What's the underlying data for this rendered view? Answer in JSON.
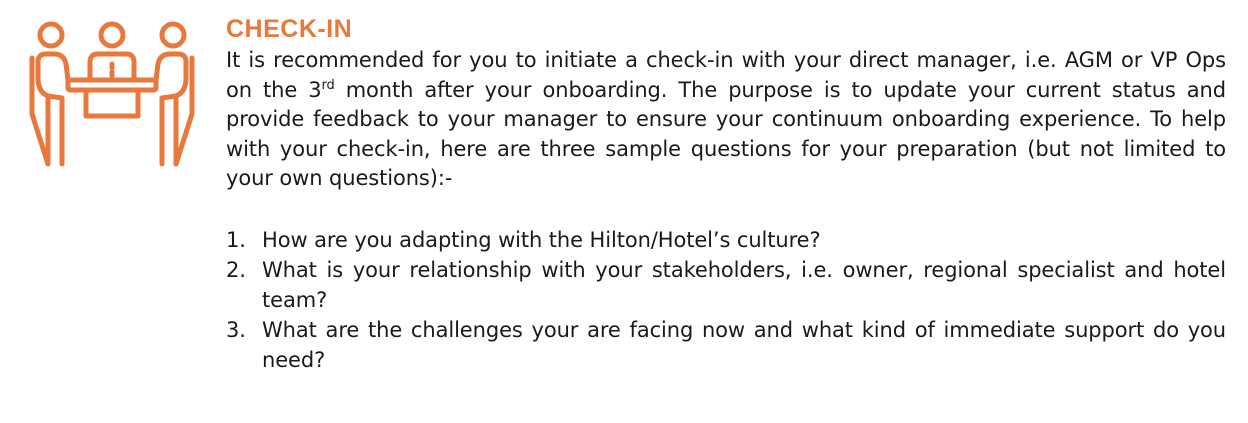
{
  "colors": {
    "accent": "#e8783c",
    "text": "#1a1a1a"
  },
  "icon": "meeting-people-icon",
  "heading": "CHECK-IN",
  "intro": {
    "before_sup": "It is recommended for you to initiate a check-in with your direct manager, i.e. AGM or VP Ops on the 3",
    "sup": "rd",
    "after_sup": " month after your onboarding.  The purpose is to update your current status and provide feedback to your manager to ensure your continuum onboarding experience.  To help with your check-in, here are three sample questions for your preparation (but not limited to your own questions):-"
  },
  "questions": [
    {
      "number": "1.",
      "text": "How are you adapting with the Hilton/Hotel’s culture?"
    },
    {
      "number": "2.",
      "text": "What is your relationship with your stakeholders, i.e. owner, regional specialist and hotel team?"
    },
    {
      "number": "3.",
      "text": "What are the challenges your are facing now and what kind of immediate support do you need?"
    }
  ]
}
